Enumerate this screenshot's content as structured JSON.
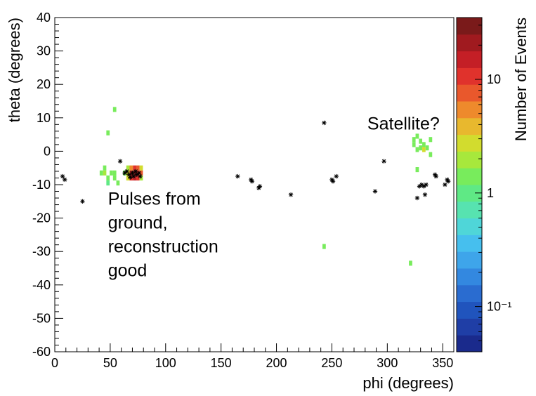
{
  "chart_data": {
    "type": "heatmap",
    "xlabel": "phi (degrees)",
    "ylabel": "theta (degrees)",
    "xlim": [
      0,
      360
    ],
    "ylim": [
      -60,
      40
    ],
    "x_ticks": [
      0,
      50,
      100,
      150,
      200,
      250,
      300,
      350
    ],
    "y_ticks": [
      -60,
      -50,
      -40,
      -30,
      -20,
      -10,
      0,
      10,
      20,
      30,
      40
    ],
    "colorbar": {
      "label": "Number of Events",
      "scale": "log",
      "min": 0.04,
      "max": 35,
      "ticks": [
        {
          "value": 0.1,
          "label": "10⁻¹"
        },
        {
          "value": 1,
          "label": "1"
        },
        {
          "value": 10,
          "label": "10"
        }
      ],
      "palette": [
        "#1a2a8c",
        "#1f3ea6",
        "#2054bd",
        "#2a6cd0",
        "#3388e0",
        "#3ea5ea",
        "#46bfee",
        "#4fd6d8",
        "#57e3b0",
        "#5fe985",
        "#78ec5c",
        "#a7e83c",
        "#d2dc2e",
        "#e8b82e",
        "#ee8a2c",
        "#e9582c",
        "#e0322c",
        "#c41f26",
        "#a01a1f",
        "#7a1a1a"
      ]
    },
    "cell_size": {
      "phi": 3,
      "theta": 1.5
    },
    "cells": [
      {
        "phi": 42,
        "theta": -6.5,
        "count": 1.5
      },
      {
        "phi": 45,
        "theta": -6.5,
        "count": 2
      },
      {
        "phi": 45,
        "theta": -5,
        "count": 1.5
      },
      {
        "phi": 48,
        "theta": -8,
        "count": 1.5
      },
      {
        "phi": 48,
        "theta": -9.5,
        "count": 1
      },
      {
        "phi": 51,
        "theta": -6.5,
        "count": 1.5
      },
      {
        "phi": 54,
        "theta": -6.5,
        "count": 1.5
      },
      {
        "phi": 54,
        "theta": -8,
        "count": 1.2
      },
      {
        "phi": 57,
        "theta": -9.5,
        "count": 1.2
      },
      {
        "phi": 63,
        "theta": -6.5,
        "count": 1.5
      },
      {
        "phi": 66,
        "theta": -6.5,
        "count": 3
      },
      {
        "phi": 66,
        "theta": -5,
        "count": 2
      },
      {
        "phi": 66,
        "theta": -8,
        "count": 2.5
      },
      {
        "phi": 69,
        "theta": -5,
        "count": 6
      },
      {
        "phi": 69,
        "theta": -6.5,
        "count": 20
      },
      {
        "phi": 69,
        "theta": -8,
        "count": 10
      },
      {
        "phi": 72,
        "theta": -5,
        "count": 10
      },
      {
        "phi": 72,
        "theta": -6.5,
        "count": 30
      },
      {
        "phi": 72,
        "theta": -8,
        "count": 15
      },
      {
        "phi": 75,
        "theta": -5,
        "count": 8
      },
      {
        "phi": 75,
        "theta": -6.5,
        "count": 12
      },
      {
        "phi": 75,
        "theta": -8,
        "count": 10
      },
      {
        "phi": 78,
        "theta": -5,
        "count": 3
      },
      {
        "phi": 78,
        "theta": -6.5,
        "count": 8
      },
      {
        "phi": 78,
        "theta": -8,
        "count": 2
      },
      {
        "phi": 54,
        "theta": 12.5,
        "count": 1.5
      },
      {
        "phi": 48,
        "theta": 5.5,
        "count": 1.5
      },
      {
        "phi": 243,
        "theta": -28.5,
        "count": 1.5
      },
      {
        "phi": 321,
        "theta": -33.5,
        "count": 1.5
      },
      {
        "phi": 324,
        "theta": 2,
        "count": 1.5
      },
      {
        "phi": 324,
        "theta": 3.5,
        "count": 1.5
      },
      {
        "phi": 327,
        "theta": 4.5,
        "count": 1.5
      },
      {
        "phi": 327,
        "theta": 0.5,
        "count": 1.5
      },
      {
        "phi": 330,
        "theta": 3,
        "count": 1.5
      },
      {
        "phi": 330,
        "theta": 1,
        "count": 1.5
      },
      {
        "phi": 333,
        "theta": 2,
        "count": 1.5
      },
      {
        "phi": 333,
        "theta": 0.5,
        "count": 3
      },
      {
        "phi": 336,
        "theta": 1,
        "count": 1.5
      },
      {
        "phi": 339,
        "theta": 3.5,
        "count": 1.5
      },
      {
        "phi": 339,
        "theta": -1,
        "count": 1.5
      },
      {
        "phi": 327,
        "theta": -5.5,
        "count": 1.5
      }
    ],
    "star_points": [
      {
        "phi": 7,
        "theta": -7.5
      },
      {
        "phi": 9,
        "theta": -8.5
      },
      {
        "phi": 25,
        "theta": -15
      },
      {
        "phi": 59,
        "theta": -3
      },
      {
        "phi": 63,
        "theta": -6.5
      },
      {
        "phi": 65,
        "theta": -6
      },
      {
        "phi": 67,
        "theta": -7
      },
      {
        "phi": 70,
        "theta": -6.5
      },
      {
        "phi": 71,
        "theta": -7.5
      },
      {
        "phi": 73,
        "theta": -6
      },
      {
        "phi": 74,
        "theta": -7
      },
      {
        "phi": 76,
        "theta": -6.5
      },
      {
        "phi": 77,
        "theta": -7.5
      },
      {
        "phi": 68,
        "theta": -7.8
      },
      {
        "phi": 165,
        "theta": -7.5
      },
      {
        "phi": 177,
        "theta": -8.5
      },
      {
        "phi": 178,
        "theta": -9
      },
      {
        "phi": 185,
        "theta": -10.5
      },
      {
        "phi": 184,
        "theta": -11
      },
      {
        "phi": 213,
        "theta": -13
      },
      {
        "phi": 243,
        "theta": 8.5
      },
      {
        "phi": 250,
        "theta": -8.5
      },
      {
        "phi": 251,
        "theta": -9
      },
      {
        "phi": 254,
        "theta": -7.5
      },
      {
        "phi": 289,
        "theta": -12
      },
      {
        "phi": 297,
        "theta": -3
      },
      {
        "phi": 327,
        "theta": -14
      },
      {
        "phi": 329,
        "theta": -10.5
      },
      {
        "phi": 331,
        "theta": -10
      },
      {
        "phi": 333,
        "theta": -10.5
      },
      {
        "phi": 334,
        "theta": -13
      },
      {
        "phi": 335,
        "theta": -10
      },
      {
        "phi": 343,
        "theta": -7
      },
      {
        "phi": 344,
        "theta": -7.5
      },
      {
        "phi": 352,
        "theta": -10
      },
      {
        "phi": 354,
        "theta": -8.5
      },
      {
        "phi": 355,
        "theta": -9
      }
    ],
    "annotations": [
      {
        "text": [
          "Pulses from",
          "ground,",
          "reconstruction",
          "good"
        ],
        "phi": 48,
        "theta": -16
      },
      {
        "text": [
          "Satellite?"
        ],
        "phi": 282,
        "theta": 6.5
      }
    ]
  }
}
